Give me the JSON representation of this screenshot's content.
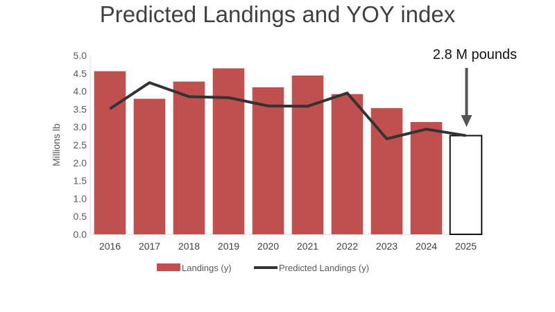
{
  "chart_data": {
    "type": "bar",
    "title": "Predicted Landings and YOY index",
    "xlabel": "",
    "ylabel": "Millions lb",
    "ylim": [
      0,
      5
    ],
    "yticks": [
      "0.0",
      "0.5",
      "1.0",
      "1.5",
      "2.0",
      "2.5",
      "3.0",
      "3.5",
      "4.0",
      "4.5",
      "5.0"
    ],
    "grid": false,
    "legend_position": "bottom",
    "categories": [
      "2016",
      "2017",
      "2018",
      "2019",
      "2020",
      "2021",
      "2022",
      "2023",
      "2024",
      "2025"
    ],
    "series": [
      {
        "name": "Landings (y)",
        "type": "bar",
        "color": "#c0504d",
        "values": [
          4.56,
          3.79,
          4.27,
          4.64,
          4.11,
          4.44,
          3.92,
          3.53,
          3.14,
          2.76
        ],
        "outlined_last": true
      },
      {
        "name": "Predicted Landings (y)",
        "type": "line",
        "color": "#333333",
        "values": [
          3.51,
          4.24,
          3.85,
          3.82,
          3.59,
          3.58,
          3.95,
          2.67,
          2.94,
          2.76
        ]
      }
    ],
    "annotations": [
      {
        "text": "2.8 M pounds",
        "target": "2025",
        "arrow": "down"
      }
    ]
  }
}
